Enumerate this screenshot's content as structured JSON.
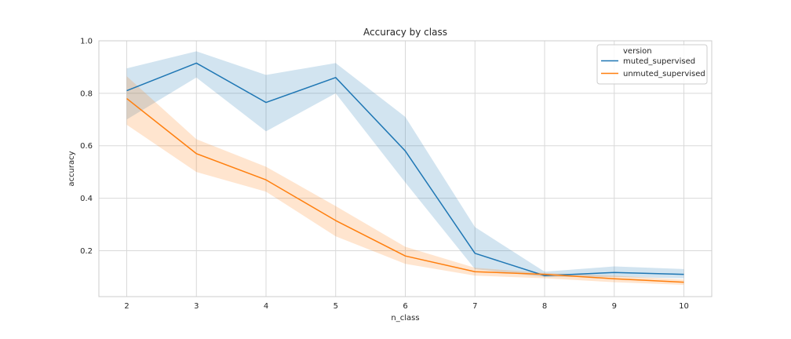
{
  "chart_data": {
    "type": "line",
    "title": "Accuracy by class",
    "xlabel": "n_class",
    "ylabel": "accuracy",
    "x": [
      2,
      3,
      4,
      5,
      6,
      7,
      8,
      9,
      10
    ],
    "xlim": [
      1.6,
      10.4
    ],
    "ylim": [
      0.025,
      1.0
    ],
    "yticks": [
      0.2,
      0.4,
      0.6,
      0.8,
      1.0
    ],
    "ytick_labels": [
      "0.2",
      "0.4",
      "0.6",
      "0.8",
      "1.0"
    ],
    "xtick_labels": [
      "2",
      "3",
      "4",
      "5",
      "6",
      "7",
      "8",
      "9",
      "10"
    ],
    "grid": true,
    "legend": {
      "title": "version",
      "placement": "top-right"
    },
    "series": [
      {
        "name": "muted_supervised",
        "color": "#1f77b4",
        "values": [
          0.81,
          0.915,
          0.765,
          0.86,
          0.58,
          0.19,
          0.105,
          0.117,
          0.11
        ],
        "lower": [
          0.7,
          0.86,
          0.655,
          0.8,
          0.46,
          0.13,
          0.1,
          0.1,
          0.095
        ],
        "upper": [
          0.895,
          0.96,
          0.87,
          0.915,
          0.71,
          0.29,
          0.12,
          0.14,
          0.13
        ]
      },
      {
        "name": "unmuted_supervised",
        "color": "#ff7f0e",
        "values": [
          0.78,
          0.57,
          0.47,
          0.315,
          0.18,
          0.12,
          0.11,
          0.093,
          0.08
        ],
        "lower": [
          0.68,
          0.5,
          0.425,
          0.255,
          0.15,
          0.105,
          0.095,
          0.08,
          0.07
        ],
        "upper": [
          0.865,
          0.625,
          0.52,
          0.37,
          0.215,
          0.135,
          0.115,
          0.105,
          0.09
        ]
      }
    ]
  }
}
